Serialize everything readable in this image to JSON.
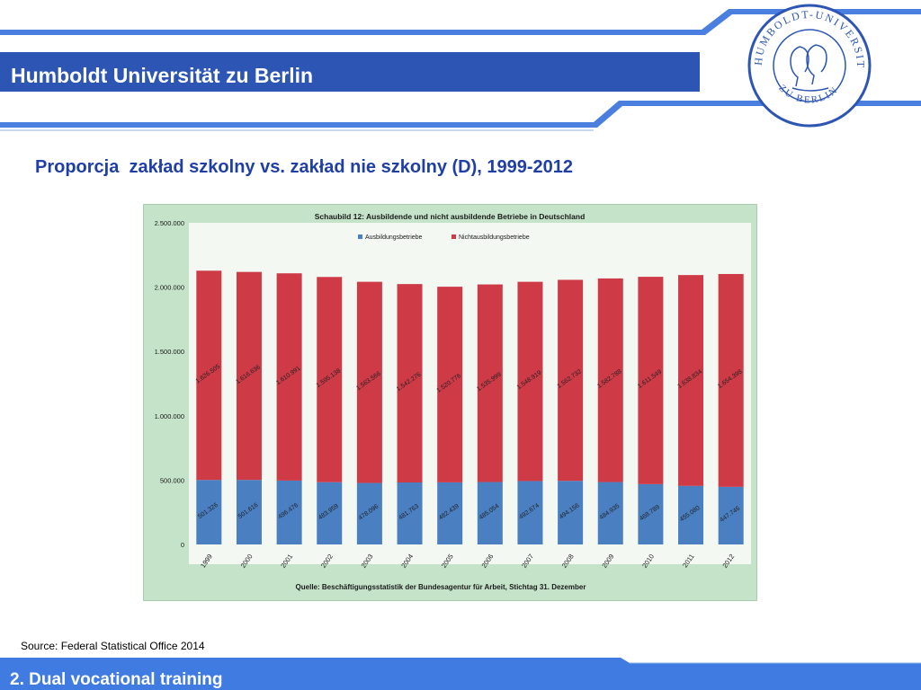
{
  "header": {
    "university_name": "Humboldt Universität zu Berlin",
    "seal_text_top": "HUMBOLDT-UNIVERSITÄT",
    "seal_text_bottom": "ZU BERLIN"
  },
  "slide": {
    "title": "Proporcja  zakład szkolny vs. zakład nie szkolny (D), 1999-2012",
    "source_note": "Source: Federal Statistical Office 2014"
  },
  "footer": {
    "section_label": "2. Dual vocational training"
  },
  "colors": {
    "brand_blue": "#3f7be0",
    "band_blue": "#2d56b4",
    "title_blue": "#1f3fa6",
    "chart_bg": "#c4e3c9",
    "plot_bg": "#ffffff",
    "bar_blue": "#4a7fc2",
    "bar_red": "#cf3a47"
  },
  "chart_data": {
    "type": "bar",
    "stacked": true,
    "title": "Schaubild 12: Ausbildende und nicht ausbildende Betriebe in Deutschland",
    "caption": "Quelle: Beschäftigungsstatistik der Bundesagentur für Arbeit, Stichtag 31. Dezember",
    "categories": [
      "1999",
      "2000",
      "2001",
      "2002",
      "2003",
      "2004",
      "2005",
      "2006",
      "2007",
      "2008",
      "2009",
      "2010",
      "2011",
      "2012"
    ],
    "series": [
      {
        "name": "Ausbildungsbetriebe",
        "color": "#4a7fc2",
        "values": [
          501326,
          501616,
          496476,
          483959,
          478096,
          481763,
          482439,
          485054,
          492674,
          494156,
          484935,
          468789,
          455080,
          447746
        ],
        "labels": [
          "501.326",
          "501.616",
          "496.476",
          "483.959",
          "478.096",
          "481.763",
          "482.439",
          "485.054",
          "492.674",
          "494.156",
          "484.935",
          "468.789",
          "455.080",
          "447.746"
        ]
      },
      {
        "name": "Nichtausbildungsbetriebe",
        "color": "#cf3a47",
        "values": [
          1626505,
          1616636,
          1610991,
          1595138,
          1563566,
          1542276,
          1520776,
          1535999,
          1548919,
          1562732,
          1582788,
          1611549,
          1638834,
          1654398
        ],
        "labels": [
          "1.626.505",
          "1.616.636",
          "1.610.991",
          "1.595.138",
          "1.563.566",
          "1.542.276",
          "1.520.776",
          "1.535.999",
          "1.548.919",
          "1.562.732",
          "1.582.788",
          "1.611.549",
          "1.638.834",
          "1.654.398"
        ]
      }
    ],
    "yticks": [
      0,
      500000,
      1000000,
      1500000,
      2000000,
      2500000
    ],
    "ytick_labels": [
      "0",
      "500.000",
      "1.000.000",
      "1.500.000",
      "2.000.000",
      "2.500.000"
    ],
    "ylim": [
      0,
      2500000
    ],
    "legend_position": "top-left",
    "grid": false
  }
}
